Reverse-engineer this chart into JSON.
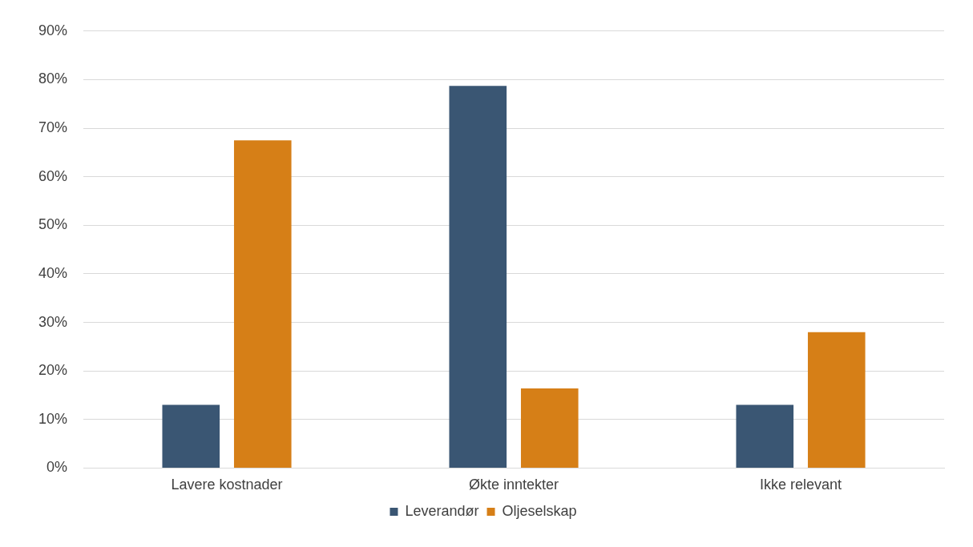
{
  "chart_data": {
    "type": "bar",
    "categories": [
      "Lavere kostnader",
      "Økte inntekter",
      "Ikke relevant"
    ],
    "series": [
      {
        "name": "Leverandør",
        "color": "#3a5673",
        "values": [
          13,
          78.7,
          13
        ]
      },
      {
        "name": "Oljeselskap",
        "color": "#d67f17",
        "values": [
          67.5,
          16.4,
          28
        ]
      }
    ],
    "ylim": [
      0,
      90
    ],
    "yticks": [
      {
        "value": 0,
        "label": "0%"
      },
      {
        "value": 10,
        "label": "10%"
      },
      {
        "value": 20,
        "label": "20%"
      },
      {
        "value": 30,
        "label": "30%"
      },
      {
        "value": 40,
        "label": "40%"
      },
      {
        "value": 50,
        "label": "50%"
      },
      {
        "value": 60,
        "label": "60%"
      },
      {
        "value": 70,
        "label": "70%"
      },
      {
        "value": 80,
        "label": "80%"
      },
      {
        "value": 90,
        "label": "90%"
      }
    ],
    "grid": "y",
    "legend": "bottom"
  }
}
